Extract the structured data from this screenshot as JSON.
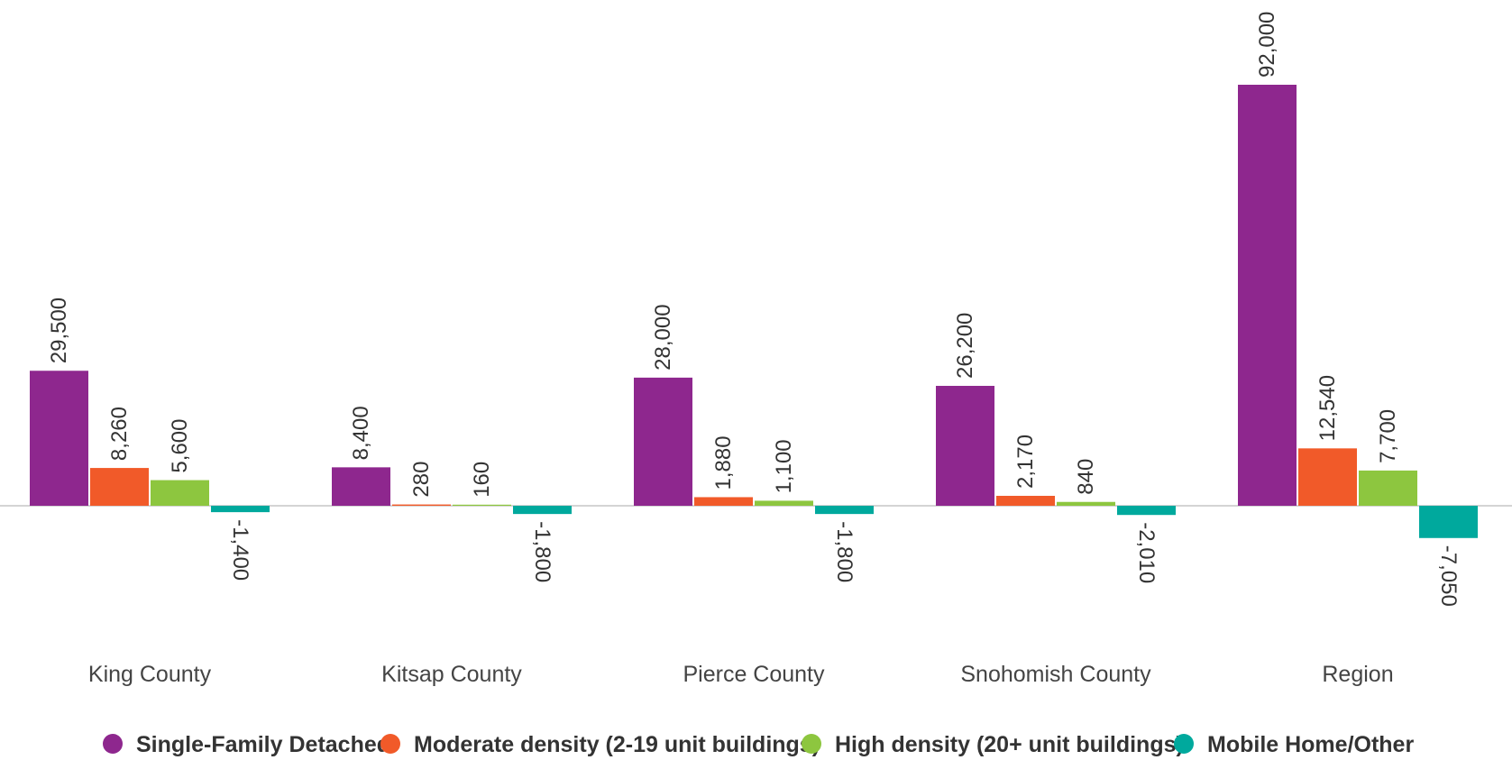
{
  "chart_data": {
    "type": "bar",
    "categories": [
      "King County",
      "Kitsap County",
      "Pierce County",
      "Snohomish County",
      "Region"
    ],
    "series": [
      {
        "name": "Single-Family Detached",
        "color": "#8e278e",
        "values": [
          29500,
          8400,
          28000,
          26200,
          92000
        ],
        "labels": [
          "29,500",
          "8,400",
          "28,000",
          "26,200",
          "92,000"
        ]
      },
      {
        "name": "Moderate density (2-19 unit buildings)",
        "color": "#f15a29",
        "values": [
          8260,
          280,
          1880,
          2170,
          12540
        ],
        "labels": [
          "8,260",
          "280",
          "1,880",
          "2,170",
          "12,540"
        ]
      },
      {
        "name": "High density (20+ unit buildings)",
        "color": "#8dc63f",
        "values": [
          5600,
          160,
          1100,
          840,
          7700
        ],
        "labels": [
          "5,600",
          "160",
          "1,100",
          "840",
          "7,700"
        ]
      },
      {
        "name": "Mobile Home/Other",
        "color": "#00a99d",
        "values": [
          -1400,
          -1800,
          -1800,
          -2010,
          -7050
        ],
        "labels": [
          "-1,400",
          "-1,800",
          "-1,800",
          "-2,010",
          "-7,050"
        ]
      }
    ],
    "title": "",
    "xlabel": "",
    "ylabel": "",
    "ylim": [
      -7050,
      92000
    ],
    "grid": false,
    "legend": "bottom"
  }
}
